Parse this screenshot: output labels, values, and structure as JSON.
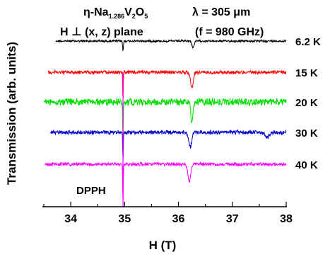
{
  "chart_data": {
    "type": "line",
    "title_left_line1_prefix": "η-Na",
    "title_left_line1_sub1": "1.286",
    "title_left_line1_mid": "V",
    "title_left_line1_sub2": "2",
    "title_left_line1_mid2": "O",
    "title_left_line1_sub3": "5",
    "title_left_line2": "H ⊥ (x, z) plane",
    "title_right_line1": "λ = 305 μm",
    "title_right_line2": "(f = 980 GHz)",
    "xlabel": "H (T)",
    "ylabel": "Transmission (arb. units)",
    "xlim": [
      33.5,
      38
    ],
    "x_ticks": [
      "34",
      "35",
      "36",
      "37",
      "38"
    ],
    "annotation": "DPPH",
    "dpph_field": 34.97,
    "series": [
      {
        "name": "6.2 K",
        "color": "#000000",
        "x_start": 33.72,
        "x_end": 38.0,
        "noise": 1.3,
        "dips": [
          {
            "x": 34.97,
            "depth": 14,
            "width": 0.01
          },
          {
            "x": 36.27,
            "depth": 9,
            "width": 0.03
          }
        ]
      },
      {
        "name": "15 K",
        "color": "#ff0000",
        "x_start": 33.58,
        "x_end": 38.0,
        "noise": 2.2,
        "dips": [
          {
            "x": 34.97,
            "depth": 40,
            "width": 0.008
          },
          {
            "x": 36.25,
            "depth": 22,
            "width": 0.035
          }
        ]
      },
      {
        "name": "20 K",
        "color": "#00dd00",
        "x_start": 33.5,
        "x_end": 38.0,
        "noise": 4.5,
        "dips": [
          {
            "x": 34.97,
            "depth": 60,
            "width": 0.008
          },
          {
            "x": 36.25,
            "depth": 30,
            "width": 0.03
          }
        ]
      },
      {
        "name": "30 K",
        "color": "#0000cc",
        "x_start": 33.62,
        "x_end": 38.0,
        "noise": 2.5,
        "dips": [
          {
            "x": 34.97,
            "depth": 40,
            "width": 0.008
          },
          {
            "x": 36.22,
            "depth": 20,
            "width": 0.04
          },
          {
            "x": 37.65,
            "depth": 7,
            "width": 0.05
          }
        ]
      },
      {
        "name": "40 K",
        "color": "#ff00ff",
        "x_start": 33.52,
        "x_end": 38.0,
        "noise": 2.2,
        "dips": [
          {
            "x": 34.97,
            "depth": 58,
            "width": 0.008
          },
          {
            "x": 36.2,
            "depth": 26,
            "width": 0.035
          }
        ]
      }
    ]
  }
}
